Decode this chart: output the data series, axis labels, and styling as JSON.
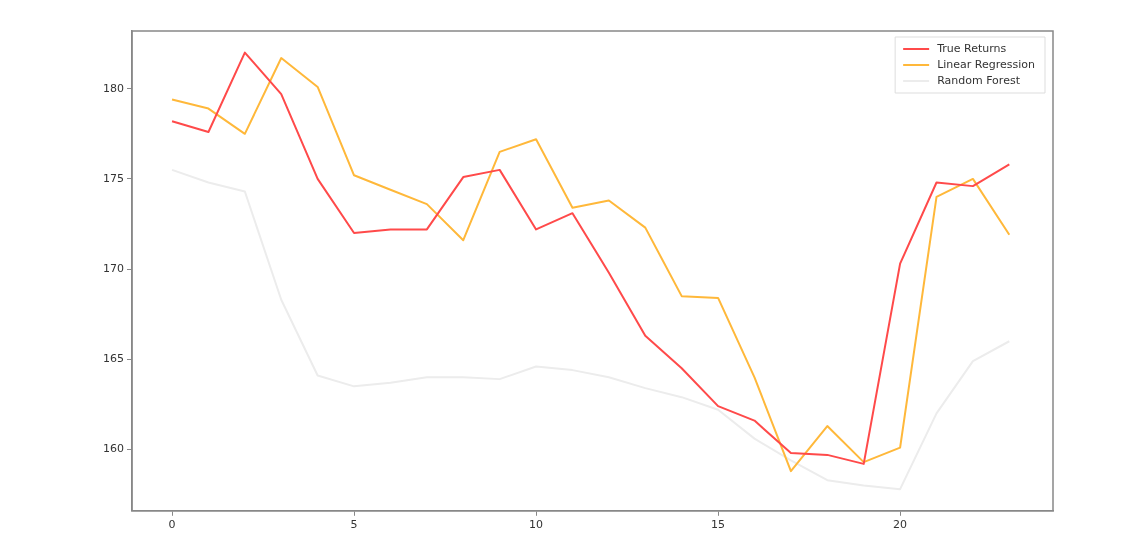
{
  "chart_data": {
    "type": "line",
    "x": [
      0,
      1,
      2,
      3,
      4,
      5,
      6,
      7,
      8,
      9,
      10,
      11,
      12,
      13,
      14,
      15,
      16,
      17,
      18,
      19,
      20,
      21,
      22,
      23
    ],
    "series": [
      {
        "name": "True Returns",
        "color": "#ff4a4a",
        "values": [
          178.2,
          177.6,
          182.0,
          179.7,
          175.0,
          172.0,
          172.2,
          172.2,
          175.1,
          175.5,
          172.2,
          173.1,
          169.8,
          166.3,
          164.5,
          162.4,
          161.6,
          159.8,
          159.7,
          159.2,
          170.3,
          174.8,
          174.6,
          175.8
        ]
      },
      {
        "name": "Linear Regression",
        "color": "#ffb83a",
        "values": [
          179.4,
          178.9,
          177.5,
          181.7,
          180.1,
          175.2,
          174.4,
          173.6,
          171.6,
          176.5,
          177.2,
          173.4,
          173.8,
          172.3,
          168.5,
          168.4,
          164.0,
          158.8,
          161.3,
          159.3,
          160.1,
          174.0,
          175.0,
          171.9
        ]
      },
      {
        "name": "Random Forest",
        "color": "#ececec",
        "values": [
          175.5,
          174.8,
          174.3,
          168.3,
          164.1,
          163.5,
          163.7,
          164.0,
          164.0,
          163.9,
          164.6,
          164.4,
          164.0,
          163.4,
          162.9,
          162.2,
          160.6,
          159.4,
          158.3,
          158.0,
          157.8,
          162.0,
          164.9,
          166.0
        ]
      }
    ],
    "xlim": [
      -1.1,
      24.2
    ],
    "xticks": [
      0,
      5,
      10,
      15,
      20
    ],
    "ylim": [
      156.6,
      183.2
    ],
    "yticks": [
      160,
      165,
      170,
      175,
      180
    ],
    "grid": false,
    "legend": "top right",
    "marker": "none",
    "line_style": "solid"
  }
}
